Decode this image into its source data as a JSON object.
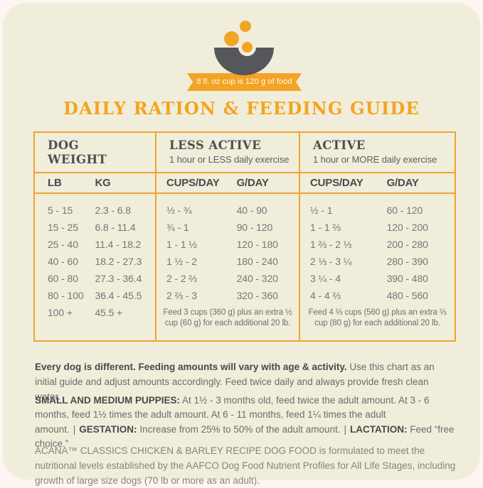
{
  "colors": {
    "accent_orange": "#F3A425",
    "card_cream": "#F0EDDB",
    "heading_dark": "#4E4F51",
    "bowl_gray": "#56575A",
    "data_gray": "#75767A",
    "footer_gray": "#84857E"
  },
  "badge": {
    "text": "8 fl. oz cup is 120 g of food"
  },
  "title": "DAILY RATION & FEEDING GUIDE",
  "table": {
    "dog_weight": {
      "header": "DOG WEIGHT",
      "columns": [
        "LB",
        "KG"
      ],
      "rows": [
        [
          "5 - 15",
          "2.3 - 6.8"
        ],
        [
          "15 - 25",
          "6.8 - 11.4"
        ],
        [
          "25 - 40",
          "11.4 - 18.2"
        ],
        [
          "40 - 60",
          "18.2 - 27.3"
        ],
        [
          "60 - 80",
          "27.3 - 36.4"
        ],
        [
          "80 - 100",
          "36.4 - 45.5"
        ],
        [
          "100 +",
          "45.5 +"
        ]
      ]
    },
    "less_active": {
      "header": "LESS ACTIVE",
      "subtitle": "1 hour or LESS daily exercise",
      "columns": [
        "CUPS/DAY",
        "G/DAY"
      ],
      "rows": [
        [
          "⅓ - ¾",
          "40 - 90"
        ],
        [
          "¾ - 1",
          "90 - 120"
        ],
        [
          "1 - 1 ½",
          "120 - 180"
        ],
        [
          "1 ½ - 2",
          "180 - 240"
        ],
        [
          "2 - 2 ⅔",
          "240 - 320"
        ],
        [
          "2 ⅔ - 3",
          "320 - 360"
        ]
      ],
      "note": "Feed 3 cups (360 g) plus an extra ½ cup (60 g) for each additional 20 lb."
    },
    "active": {
      "header": "ACTIVE",
      "subtitle": "1 hour or MORE daily exercise",
      "columns": [
        "CUPS/DAY",
        "G/DAY"
      ],
      "rows": [
        [
          "½ - 1",
          "60 - 120"
        ],
        [
          "1 - 1 ⅔",
          "120 - 200"
        ],
        [
          "1 ⅔ - 2 ⅓",
          "200 - 280"
        ],
        [
          "2 ⅓ - 3 ¼",
          "280 - 390"
        ],
        [
          "3 ¼ - 4",
          "390 - 480"
        ],
        [
          "4 - 4 ⅔",
          "480 - 560"
        ]
      ],
      "note": "Feed 4 ⅔ cups (560 g) plus an extra ⅔ cup (80 g) for each additional 20 lb."
    }
  },
  "notes": {
    "intro_bold": "Every dog is different. Feeding amounts will vary with age & activity.",
    "intro_rest": "Use this chart as an initial guide and adjust amounts accordingly. Feed twice daily and always provide fresh clean water.",
    "puppies_label": "SMALL AND MEDIUM PUPPIES:",
    "puppies_text": "At 1½ - 3 months old, feed twice the adult amount. At 3 - 6 months, feed 1½ times the adult amount. At 6 - 11 months, feed 1¼ times the adult amount.",
    "separator": "|",
    "gestation_label": "GESTATION:",
    "gestation_text": "Increase from 25% to 50% of the adult amount.",
    "lactation_label": "LACTATION:",
    "lactation_text": "Feed “free choice.”",
    "footer": "ACANA™ CLASSICS CHICKEN & BARLEY RECIPE DOG FOOD is formulated to meet the nutritional levels established by the AAFCO Dog Food Nutrient Profiles for All Life Stages, including growth of large size dogs (70 lb or more as an adult)."
  }
}
